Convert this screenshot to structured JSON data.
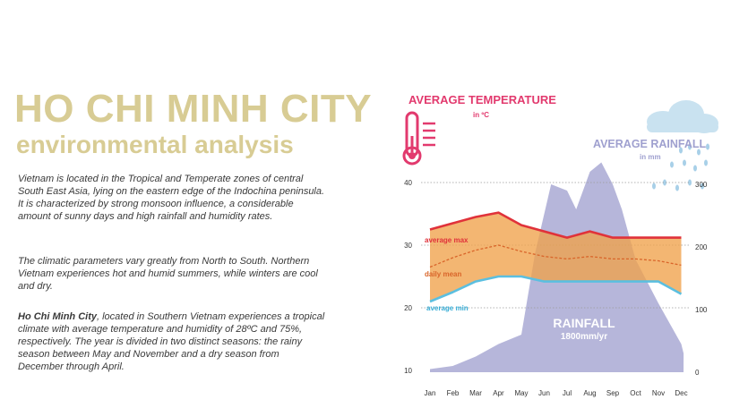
{
  "header": {
    "title": "HO CHI MINH CITY",
    "subtitle": "environmental analysis"
  },
  "paragraphs": {
    "p1": "Vietnam is located in the Tropical and Temperate zones of central South East Asia, lying on the eastern edge of the Indochina peninsula. It is characterized by strong monsoon influence, a considerable amount of sunny days and high rainfall and humidity rates.",
    "p2": "The climatic parameters vary greatly from North to South. Northern Vietnam experiences hot and humid summers, while winters are cool and dry.",
    "p3_bold": "Ho Chi Minh City",
    "p3_rest": ", located in Southern Vietnam experiences a tropical climate with average temperature and humidity of 28ºC and 75%, respectively. The year is divided in two distinct seasons: the rainy season between May and November and a dry season from December through April."
  },
  "chart_data": {
    "type": "line",
    "temperature_title": "AVERAGE TEMPERATURE",
    "temperature_unit": "in ºC",
    "rainfall_title": "AVERAGE RAINFALL",
    "rainfall_unit": "in mm",
    "categories": [
      "Jan",
      "Feb",
      "Mar",
      "Apr",
      "May",
      "Jun",
      "Jul",
      "Aug",
      "Sep",
      "Oct",
      "Nov",
      "Dec"
    ],
    "y_left_ticks": [
      "40",
      "30",
      "20",
      "10"
    ],
    "y_left_range": [
      10,
      40
    ],
    "y_right_ticks": [
      "300",
      "200",
      "100",
      "0"
    ],
    "y_right_range": [
      0,
      300
    ],
    "grid": true,
    "series": [
      {
        "name": "average max",
        "color": "#e0323a",
        "values": [
          32.5,
          33.5,
          34.5,
          35.2,
          33.2,
          32.2,
          31.2,
          32.2,
          31.2,
          31.2,
          31.2,
          31.2
        ]
      },
      {
        "name": "daily mean",
        "color": "#d9652a",
        "values": [
          26.5,
          28.0,
          29.2,
          30.0,
          29.0,
          28.2,
          27.8,
          28.2,
          27.8,
          27.8,
          27.5,
          26.8
        ]
      },
      {
        "name": "average min",
        "color": "#5bbfe0",
        "values": [
          21.0,
          22.5,
          24.2,
          25.0,
          25.0,
          24.2,
          24.2,
          24.2,
          24.2,
          24.2,
          24.2,
          22.2
        ]
      }
    ],
    "rainfall": {
      "label": "RAINFALL",
      "total": "1800mm/yr",
      "color": "#a9a9d4",
      "months": [
        0,
        1,
        2,
        3,
        4,
        4.6,
        5.3,
        6,
        6.4,
        7,
        7.5,
        8,
        8.4,
        9,
        10,
        11,
        11.1
      ],
      "values": [
        5,
        10,
        25,
        45,
        60,
        190,
        300,
        290,
        260,
        320,
        335,
        300,
        260,
        180,
        110,
        45,
        30
      ]
    },
    "thermometer_icon": "thermometer-icon",
    "cloud_icon": "rain-cloud-icon"
  }
}
